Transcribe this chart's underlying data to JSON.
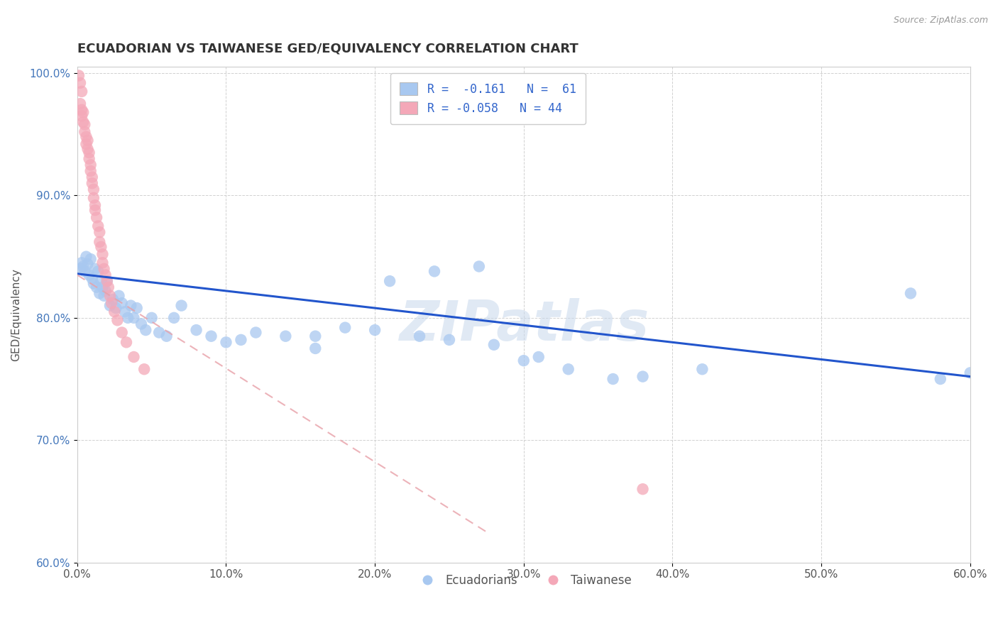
{
  "title": "ECUADORIAN VS TAIWANESE GED/EQUIVALENCY CORRELATION CHART",
  "source": "Source: ZipAtlas.com",
  "ylabel": "GED/Equivalency",
  "xlim": [
    0.0,
    0.6
  ],
  "ylim": [
    0.6,
    1.005
  ],
  "xticks": [
    0.0,
    0.1,
    0.2,
    0.3,
    0.4,
    0.5,
    0.6
  ],
  "xticklabels": [
    "0.0%",
    "10.0%",
    "20.0%",
    "30.0%",
    "40.0%",
    "50.0%",
    "60.0%"
  ],
  "yticks": [
    0.6,
    0.7,
    0.8,
    0.9,
    1.0
  ],
  "yticklabels": [
    "60.0%",
    "70.0%",
    "80.0%",
    "90.0%",
    "100.0%"
  ],
  "watermark": "ZIPatlas",
  "blue_color": "#A8C8F0",
  "pink_color": "#F4A8B8",
  "blue_line_color": "#2255CC",
  "pink_line_color": "#E8A0A8",
  "blue_line_x0": 0.0,
  "blue_line_x1": 0.6,
  "blue_line_y0": 0.836,
  "blue_line_y1": 0.752,
  "pink_line_x0": 0.0,
  "pink_line_x1": 0.275,
  "pink_line_y0": 0.835,
  "pink_line_y1": 0.625,
  "blue_x": [
    0.002,
    0.003,
    0.004,
    0.005,
    0.006,
    0.007,
    0.008,
    0.009,
    0.01,
    0.011,
    0.012,
    0.013,
    0.014,
    0.015,
    0.016,
    0.017,
    0.018,
    0.019,
    0.02,
    0.022,
    0.024,
    0.026,
    0.028,
    0.03,
    0.032,
    0.034,
    0.036,
    0.038,
    0.04,
    0.043,
    0.046,
    0.05,
    0.055,
    0.06,
    0.065,
    0.07,
    0.08,
    0.09,
    0.1,
    0.11,
    0.12,
    0.14,
    0.16,
    0.18,
    0.21,
    0.24,
    0.27,
    0.3,
    0.33,
    0.36,
    0.16,
    0.2,
    0.23,
    0.25,
    0.28,
    0.31,
    0.38,
    0.42,
    0.56,
    0.6,
    0.58
  ],
  "blue_y": [
    0.84,
    0.845,
    0.842,
    0.838,
    0.85,
    0.844,
    0.835,
    0.848,
    0.832,
    0.828,
    0.84,
    0.825,
    0.838,
    0.82,
    0.83,
    0.825,
    0.818,
    0.822,
    0.83,
    0.81,
    0.815,
    0.808,
    0.818,
    0.812,
    0.805,
    0.8,
    0.81,
    0.8,
    0.808,
    0.795,
    0.79,
    0.8,
    0.788,
    0.785,
    0.8,
    0.81,
    0.79,
    0.785,
    0.78,
    0.782,
    0.788,
    0.785,
    0.775,
    0.792,
    0.83,
    0.838,
    0.842,
    0.765,
    0.758,
    0.75,
    0.785,
    0.79,
    0.785,
    0.782,
    0.778,
    0.768,
    0.752,
    0.758,
    0.82,
    0.755,
    0.75
  ],
  "pink_x": [
    0.002,
    0.003,
    0.003,
    0.004,
    0.004,
    0.005,
    0.005,
    0.006,
    0.006,
    0.007,
    0.007,
    0.008,
    0.008,
    0.009,
    0.009,
    0.01,
    0.01,
    0.011,
    0.011,
    0.012,
    0.012,
    0.013,
    0.014,
    0.015,
    0.015,
    0.016,
    0.017,
    0.017,
    0.018,
    0.019,
    0.02,
    0.021,
    0.022,
    0.023,
    0.025,
    0.027,
    0.03,
    0.033,
    0.038,
    0.045,
    0.001,
    0.002,
    0.003,
    0.38
  ],
  "pink_y": [
    0.975,
    0.97,
    0.965,
    0.968,
    0.96,
    0.958,
    0.952,
    0.948,
    0.942,
    0.945,
    0.938,
    0.935,
    0.93,
    0.925,
    0.92,
    0.915,
    0.91,
    0.905,
    0.898,
    0.892,
    0.888,
    0.882,
    0.875,
    0.87,
    0.862,
    0.858,
    0.852,
    0.845,
    0.84,
    0.835,
    0.83,
    0.825,
    0.818,
    0.812,
    0.805,
    0.798,
    0.788,
    0.78,
    0.768,
    0.758,
    0.998,
    0.992,
    0.985,
    0.66
  ]
}
